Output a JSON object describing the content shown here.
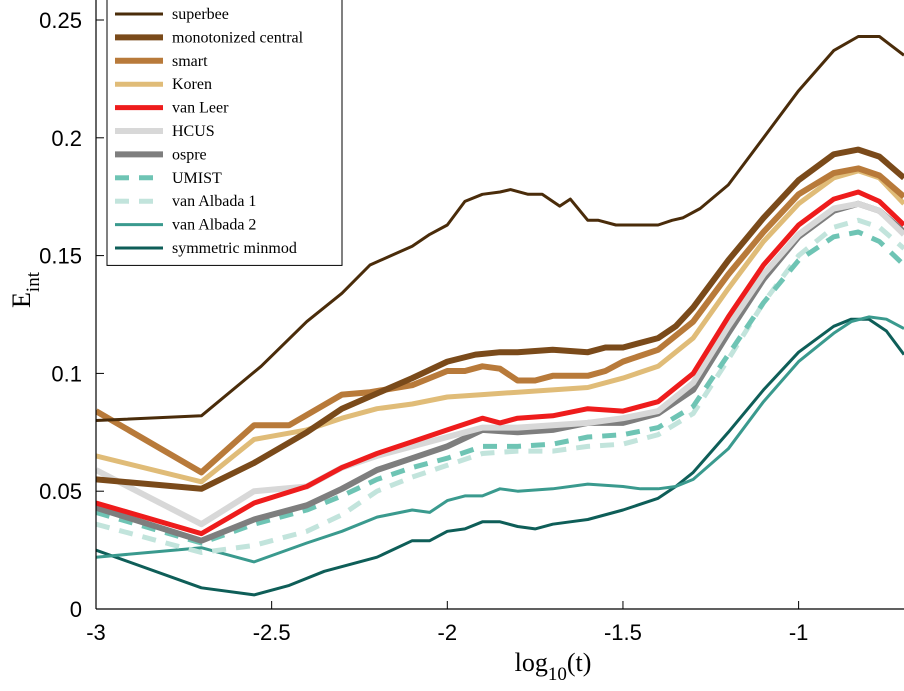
{
  "chart_data": {
    "type": "line",
    "xlabel": "log",
    "xlabel_sub": "10",
    "xlabel_suffix": "(t)",
    "ylabel": "E",
    "ylabel_sub": "int",
    "xlim": [
      -3,
      -0.7
    ],
    "ylim": [
      0,
      0.25
    ],
    "xticks": [
      -3,
      -2.5,
      -2,
      -1.5,
      -1
    ],
    "xtick_labels": [
      "-3",
      "-2.5",
      "-2",
      "-1.5",
      "-1"
    ],
    "yticks": [
      0,
      0.05,
      0.1,
      0.15,
      0.2,
      0.25
    ],
    "ytick_labels": [
      "0",
      "0.05",
      "0.1",
      "0.15",
      "0.2",
      "0.25"
    ],
    "grid": false,
    "legend_position": "top-left",
    "series": [
      {
        "name": "superbee",
        "color": "#4a2c0a",
        "width": 3,
        "dash": "",
        "x": [
          -3,
          -2.7,
          -2.53,
          -2.4,
          -2.3,
          -2.22,
          -2.1,
          -2.05,
          -2.0,
          -1.95,
          -1.9,
          -1.85,
          -1.82,
          -1.77,
          -1.73,
          -1.68,
          -1.65,
          -1.6,
          -1.57,
          -1.52,
          -1.45,
          -1.4,
          -1.36,
          -1.33,
          -1.28,
          -1.2,
          -1.1,
          -1.0,
          -0.9,
          -0.83,
          -0.77,
          -0.7
        ],
        "y": [
          0.08,
          0.082,
          0.103,
          0.122,
          0.134,
          0.146,
          0.154,
          0.159,
          0.163,
          0.173,
          0.176,
          0.177,
          0.178,
          0.176,
          0.176,
          0.171,
          0.174,
          0.165,
          0.165,
          0.163,
          0.163,
          0.163,
          0.165,
          0.166,
          0.17,
          0.18,
          0.2,
          0.22,
          0.237,
          0.243,
          0.243,
          0.235
        ]
      },
      {
        "name": "monotonized central",
        "color": "#7a4a1a",
        "width": 6,
        "dash": "",
        "x": [
          -3,
          -2.7,
          -2.55,
          -2.4,
          -2.3,
          -2.1,
          -2.0,
          -1.92,
          -1.85,
          -1.8,
          -1.7,
          -1.6,
          -1.55,
          -1.5,
          -1.4,
          -1.35,
          -1.3,
          -1.2,
          -1.1,
          -1.0,
          -0.9,
          -0.83,
          -0.77,
          -0.7
        ],
        "y": [
          0.055,
          0.051,
          0.062,
          0.075,
          0.085,
          0.098,
          0.105,
          0.108,
          0.109,
          0.109,
          0.11,
          0.109,
          0.111,
          0.111,
          0.115,
          0.12,
          0.128,
          0.148,
          0.166,
          0.182,
          0.193,
          0.195,
          0.192,
          0.183
        ]
      },
      {
        "name": "smart",
        "color": "#b87a3a",
        "width": 6,
        "dash": "",
        "x": [
          -3,
          -2.7,
          -2.55,
          -2.45,
          -2.3,
          -2.22,
          -2.1,
          -2.0,
          -1.95,
          -1.9,
          -1.85,
          -1.8,
          -1.75,
          -1.7,
          -1.65,
          -1.6,
          -1.55,
          -1.5,
          -1.4,
          -1.3,
          -1.2,
          -1.1,
          -1.0,
          -0.9,
          -0.83,
          -0.77,
          -0.7
        ],
        "y": [
          0.084,
          0.058,
          0.078,
          0.078,
          0.091,
          0.092,
          0.095,
          0.101,
          0.101,
          0.103,
          0.102,
          0.097,
          0.097,
          0.099,
          0.099,
          0.099,
          0.101,
          0.105,
          0.11,
          0.122,
          0.142,
          0.16,
          0.176,
          0.185,
          0.187,
          0.184,
          0.175
        ]
      },
      {
        "name": "Koren",
        "color": "#e0bc78",
        "width": 5,
        "dash": "",
        "x": [
          -3,
          -2.7,
          -2.55,
          -2.4,
          -2.3,
          -2.2,
          -2.1,
          -2.0,
          -1.9,
          -1.8,
          -1.7,
          -1.6,
          -1.5,
          -1.4,
          -1.3,
          -1.2,
          -1.1,
          -1.0,
          -0.9,
          -0.83,
          -0.77,
          -0.7
        ],
        "y": [
          0.065,
          0.054,
          0.072,
          0.076,
          0.081,
          0.085,
          0.087,
          0.09,
          0.091,
          0.092,
          0.093,
          0.094,
          0.098,
          0.103,
          0.115,
          0.136,
          0.156,
          0.172,
          0.183,
          0.186,
          0.183,
          0.172
        ]
      },
      {
        "name": "van Leer",
        "color": "#ee1c1c",
        "width": 5,
        "dash": "",
        "x": [
          -3,
          -2.7,
          -2.55,
          -2.4,
          -2.3,
          -2.2,
          -2.1,
          -2.0,
          -1.9,
          -1.85,
          -1.8,
          -1.7,
          -1.6,
          -1.5,
          -1.4,
          -1.3,
          -1.2,
          -1.1,
          -1.0,
          -0.9,
          -0.83,
          -0.77,
          -0.7
        ],
        "y": [
          0.045,
          0.032,
          0.045,
          0.052,
          0.06,
          0.066,
          0.071,
          0.076,
          0.081,
          0.079,
          0.081,
          0.082,
          0.085,
          0.084,
          0.088,
          0.1,
          0.124,
          0.146,
          0.163,
          0.174,
          0.177,
          0.173,
          0.163
        ]
      },
      {
        "name": "HCUS",
        "color": "#d8d8d8",
        "width": 6,
        "dash": "",
        "x": [
          -3,
          -2.7,
          -2.55,
          -2.4,
          -2.3,
          -2.2,
          -2.1,
          -2.0,
          -1.9,
          -1.8,
          -1.7,
          -1.6,
          -1.5,
          -1.4,
          -1.3,
          -1.2,
          -1.1,
          -1.0,
          -0.9,
          -0.83,
          -0.77,
          -0.7
        ],
        "y": [
          0.059,
          0.036,
          0.05,
          0.052,
          0.06,
          0.065,
          0.069,
          0.073,
          0.077,
          0.077,
          0.078,
          0.079,
          0.081,
          0.084,
          0.096,
          0.12,
          0.142,
          0.159,
          0.17,
          0.172,
          0.169,
          0.159
        ]
      },
      {
        "name": "ospre",
        "color": "#7e7e7e",
        "width": 6,
        "dash": "",
        "x": [
          -3,
          -2.7,
          -2.55,
          -2.4,
          -2.3,
          -2.2,
          -2.1,
          -2.0,
          -1.9,
          -1.8,
          -1.7,
          -1.6,
          -1.5,
          -1.4,
          -1.3,
          -1.2,
          -1.1,
          -1.0,
          -0.9,
          -0.83,
          -0.77,
          -0.7
        ],
        "y": [
          0.043,
          0.029,
          0.038,
          0.044,
          0.051,
          0.059,
          0.064,
          0.069,
          0.076,
          0.075,
          0.076,
          0.079,
          0.079,
          0.083,
          0.093,
          0.117,
          0.14,
          0.158,
          0.169,
          0.172,
          0.169,
          0.16
        ]
      },
      {
        "name": "UMIST",
        "color": "#6ec4b4",
        "width": 5,
        "dash": "14 10",
        "x": [
          -3,
          -2.7,
          -2.55,
          -2.4,
          -2.3,
          -2.2,
          -2.1,
          -2.0,
          -1.9,
          -1.8,
          -1.7,
          -1.6,
          -1.5,
          -1.4,
          -1.3,
          -1.2,
          -1.1,
          -1.0,
          -0.9,
          -0.83,
          -0.77,
          -0.7
        ],
        "y": [
          0.041,
          0.028,
          0.036,
          0.042,
          0.048,
          0.055,
          0.06,
          0.064,
          0.069,
          0.069,
          0.07,
          0.073,
          0.074,
          0.077,
          0.086,
          0.108,
          0.13,
          0.148,
          0.158,
          0.16,
          0.156,
          0.146
        ]
      },
      {
        "name": "van Albada 1",
        "color": "#c2e4dc",
        "width": 5,
        "dash": "14 10",
        "x": [
          -3,
          -2.7,
          -2.55,
          -2.4,
          -2.3,
          -2.2,
          -2.1,
          -2.0,
          -1.9,
          -1.8,
          -1.7,
          -1.6,
          -1.5,
          -1.4,
          -1.3,
          -1.2,
          -1.1,
          -1.0,
          -0.9,
          -0.83,
          -0.77,
          -0.7
        ],
        "y": [
          0.036,
          0.024,
          0.027,
          0.033,
          0.04,
          0.05,
          0.056,
          0.061,
          0.066,
          0.067,
          0.067,
          0.069,
          0.07,
          0.074,
          0.083,
          0.106,
          0.13,
          0.15,
          0.162,
          0.165,
          0.162,
          0.153
        ]
      },
      {
        "name": "van Albada 2",
        "color": "#3a9a8e",
        "width": 3,
        "dash": "",
        "x": [
          -3,
          -2.7,
          -2.55,
          -2.4,
          -2.3,
          -2.2,
          -2.1,
          -2.05,
          -2.0,
          -1.95,
          -1.9,
          -1.85,
          -1.8,
          -1.7,
          -1.6,
          -1.5,
          -1.45,
          -1.4,
          -1.35,
          -1.3,
          -1.2,
          -1.1,
          -1.0,
          -0.9,
          -0.85,
          -0.8,
          -0.75,
          -0.7
        ],
        "y": [
          0.022,
          0.026,
          0.02,
          0.028,
          0.033,
          0.039,
          0.042,
          0.041,
          0.046,
          0.048,
          0.048,
          0.051,
          0.05,
          0.051,
          0.053,
          0.052,
          0.051,
          0.051,
          0.052,
          0.055,
          0.068,
          0.088,
          0.105,
          0.117,
          0.122,
          0.124,
          0.123,
          0.119
        ]
      },
      {
        "name": "symmetric minmod",
        "color": "#0e5e58",
        "width": 3,
        "dash": "",
        "x": [
          -3,
          -2.7,
          -2.55,
          -2.45,
          -2.35,
          -2.2,
          -2.1,
          -2.05,
          -2.0,
          -1.95,
          -1.9,
          -1.85,
          -1.8,
          -1.75,
          -1.7,
          -1.65,
          -1.6,
          -1.5,
          -1.4,
          -1.35,
          -1.3,
          -1.2,
          -1.1,
          -1.0,
          -0.9,
          -0.85,
          -0.8,
          -0.75,
          -0.7
        ],
        "y": [
          0.025,
          0.009,
          0.006,
          0.01,
          0.016,
          0.022,
          0.029,
          0.029,
          0.033,
          0.034,
          0.037,
          0.037,
          0.035,
          0.034,
          0.036,
          0.037,
          0.038,
          0.042,
          0.047,
          0.052,
          0.058,
          0.075,
          0.093,
          0.109,
          0.12,
          0.123,
          0.123,
          0.118,
          0.108
        ]
      }
    ]
  }
}
